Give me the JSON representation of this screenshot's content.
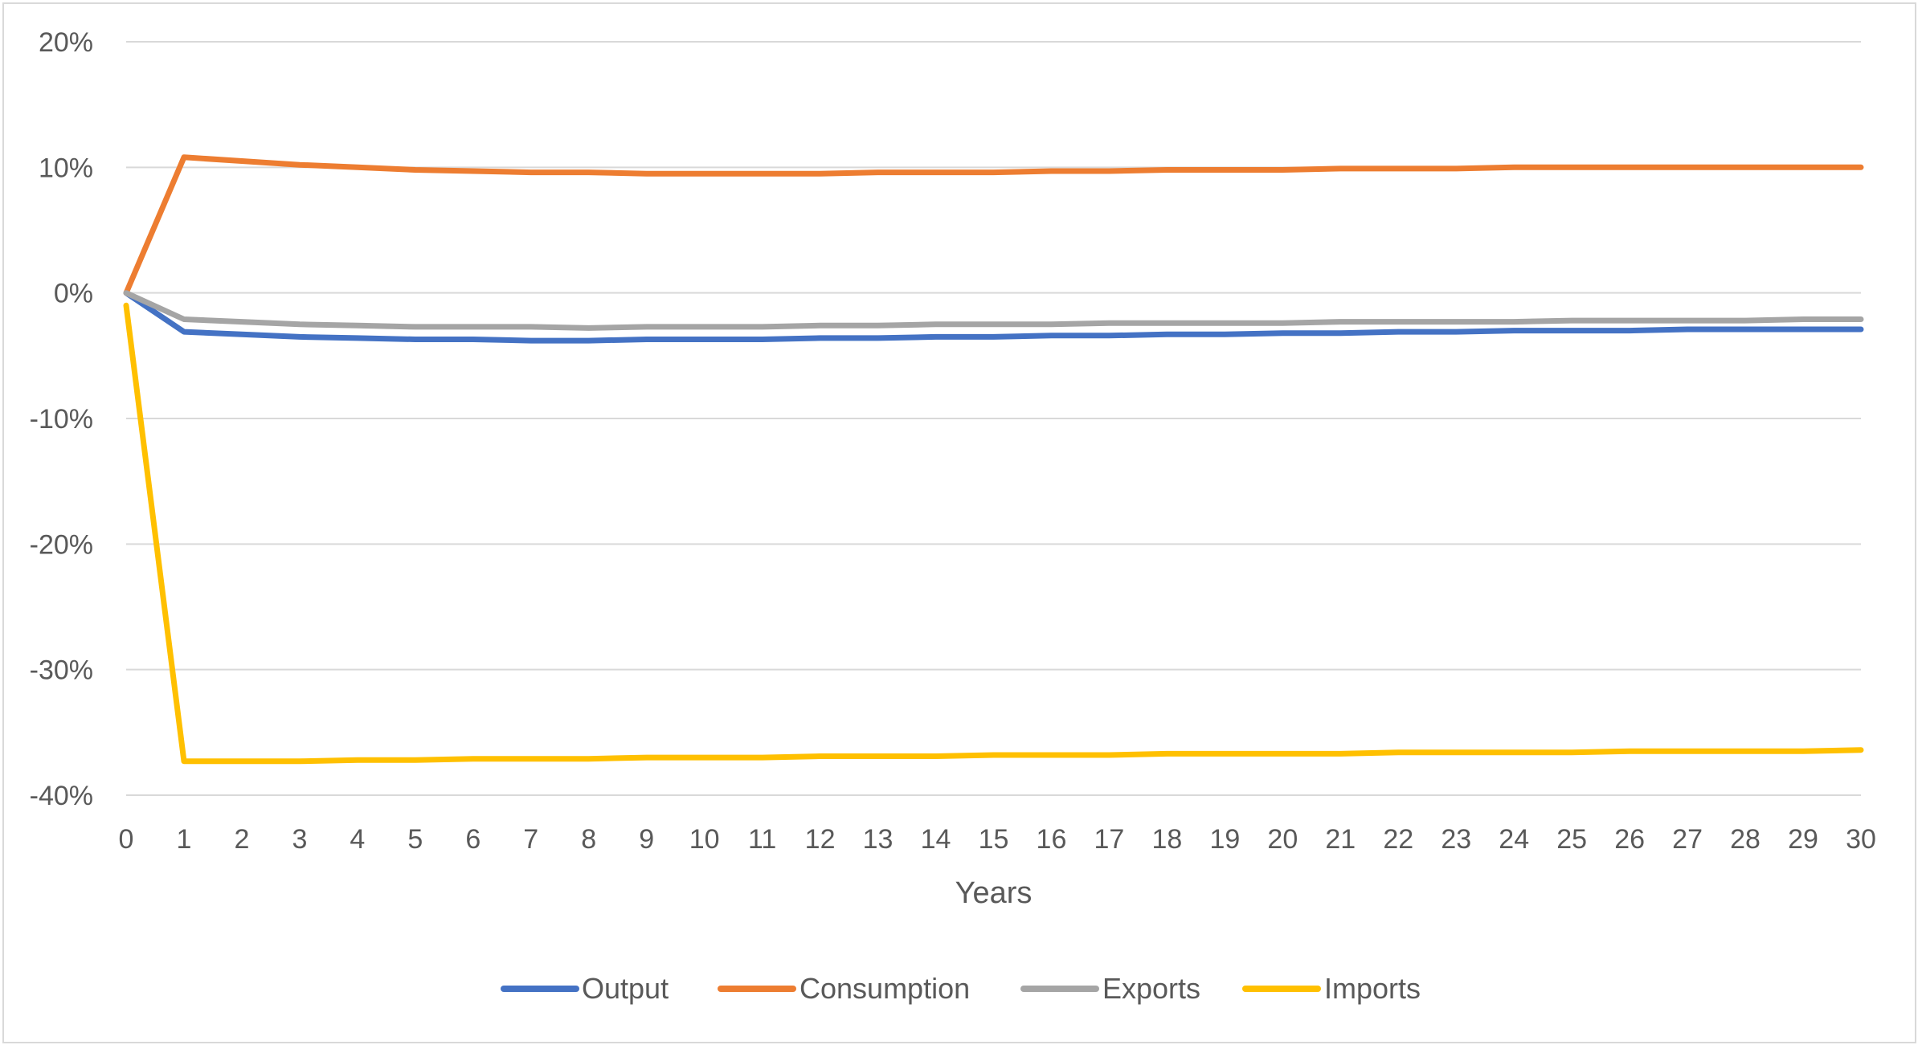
{
  "chart_data": {
    "type": "line",
    "title": "",
    "xlabel": "Years",
    "ylabel": "",
    "x": [
      0,
      1,
      2,
      3,
      4,
      5,
      6,
      7,
      8,
      9,
      10,
      11,
      12,
      13,
      14,
      15,
      16,
      17,
      18,
      19,
      20,
      21,
      22,
      23,
      24,
      25,
      26,
      27,
      28,
      29,
      30
    ],
    "x_tick_labels": [
      "0",
      "1",
      "2",
      "3",
      "4",
      "5",
      "6",
      "7",
      "8",
      "9",
      "10",
      "11",
      "12",
      "13",
      "14",
      "15",
      "16",
      "17",
      "18",
      "19",
      "20",
      "21",
      "22",
      "23",
      "24",
      "25",
      "26",
      "27",
      "28",
      "29",
      "30"
    ],
    "ylim": [
      -40,
      20
    ],
    "y_ticks": [
      20,
      10,
      0,
      -10,
      -20,
      -30,
      -40
    ],
    "y_tick_labels": [
      "20%",
      "10%",
      "0%",
      "-10%",
      "-20%",
      "-30%",
      "-40%"
    ],
    "y_unit": "%",
    "grid": true,
    "legend_position": "bottom",
    "series": [
      {
        "name": "Output",
        "color": "#4472C4",
        "values": [
          0,
          -3.1,
          -3.3,
          -3.5,
          -3.6,
          -3.7,
          -3.7,
          -3.8,
          -3.8,
          -3.7,
          -3.7,
          -3.7,
          -3.6,
          -3.6,
          -3.5,
          -3.5,
          -3.4,
          -3.4,
          -3.3,
          -3.3,
          -3.2,
          -3.2,
          -3.1,
          -3.1,
          -3.0,
          -3.0,
          -3.0,
          -2.9,
          -2.9,
          -2.9,
          -2.9
        ]
      },
      {
        "name": "Consumption",
        "color": "#ED7D31",
        "values": [
          0,
          10.8,
          10.5,
          10.2,
          10.0,
          9.8,
          9.7,
          9.6,
          9.6,
          9.5,
          9.5,
          9.5,
          9.5,
          9.6,
          9.6,
          9.6,
          9.7,
          9.7,
          9.8,
          9.8,
          9.8,
          9.9,
          9.9,
          9.9,
          10.0,
          10.0,
          10.0,
          10.0,
          10.0,
          10.0,
          10.0
        ]
      },
      {
        "name": "Exports",
        "color": "#A5A5A5",
        "values": [
          0,
          -2.1,
          -2.3,
          -2.5,
          -2.6,
          -2.7,
          -2.7,
          -2.7,
          -2.8,
          -2.7,
          -2.7,
          -2.7,
          -2.6,
          -2.6,
          -2.5,
          -2.5,
          -2.5,
          -2.4,
          -2.4,
          -2.4,
          -2.4,
          -2.3,
          -2.3,
          -2.3,
          -2.3,
          -2.2,
          -2.2,
          -2.2,
          -2.2,
          -2.1,
          -2.1
        ]
      },
      {
        "name": "Imports",
        "color": "#FFC000",
        "values": [
          -1.0,
          -37.3,
          -37.3,
          -37.3,
          -37.2,
          -37.2,
          -37.1,
          -37.1,
          -37.1,
          -37.0,
          -37.0,
          -37.0,
          -36.9,
          -36.9,
          -36.9,
          -36.8,
          -36.8,
          -36.8,
          -36.7,
          -36.7,
          -36.7,
          -36.7,
          -36.6,
          -36.6,
          -36.6,
          -36.6,
          -36.5,
          -36.5,
          -36.5,
          -36.5,
          -36.4
        ]
      }
    ]
  }
}
